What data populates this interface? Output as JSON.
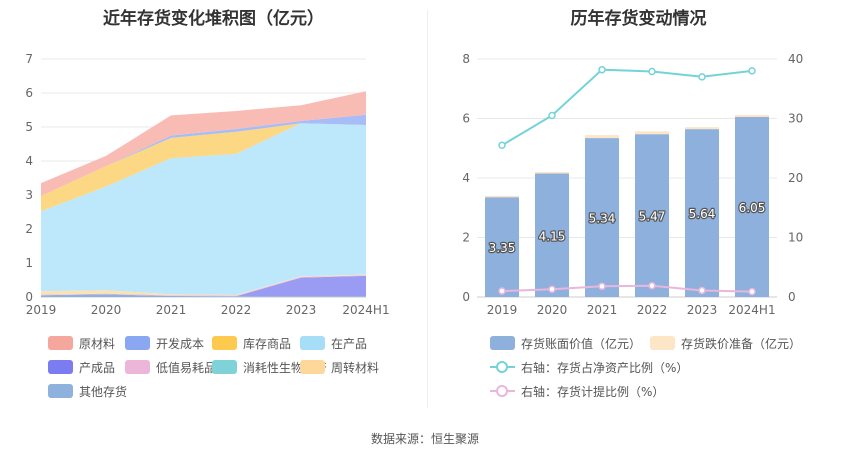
{
  "left_title": "近年存货变化堆积图（亿元）",
  "right_title": "历年存货变动情况",
  "footer": "数据来源：恒生聚源",
  "chart_data": [
    {
      "type": "area",
      "stacked": true,
      "title": "近年存货变化堆积图（亿元）",
      "categories": [
        "2019",
        "2020",
        "2021",
        "2022",
        "2023",
        "2024H1"
      ],
      "ylim": [
        0,
        7
      ],
      "yticks": [
        "0",
        "1",
        "2",
        "3",
        "4",
        "5",
        "6",
        "7"
      ],
      "grid": true,
      "legend_position": "bottom",
      "series": [
        {
          "name": "其他存货",
          "color": "#8eb1dd",
          "values": [
            0.05,
            0.08,
            0.03,
            0.02,
            0.02,
            0.02
          ]
        },
        {
          "name": "产成品",
          "color": "#9a9bf2",
          "values": [
            0.0,
            0.0,
            0.0,
            0.0,
            0.55,
            0.6
          ]
        },
        {
          "name": "低值易耗品",
          "color": "#eebbdd",
          "values": [
            0.02,
            0.02,
            0.02,
            0.02,
            0.02,
            0.02
          ]
        },
        {
          "name": "周转材料",
          "color": "#fde2b1",
          "values": [
            0.1,
            0.1,
            0.03,
            0.02,
            0.02,
            0.02
          ]
        },
        {
          "name": "在产品",
          "color": "#bde8fb",
          "values": [
            2.35,
            3.05,
            4.0,
            4.15,
            4.5,
            4.4
          ]
        },
        {
          "name": "消耗性生物资产",
          "color": "#8dd6d6",
          "values": [
            0.0,
            0.0,
            0.0,
            0.0,
            0.0,
            0.0
          ]
        },
        {
          "name": "库存商品",
          "color": "#fcd784",
          "values": [
            0.45,
            0.6,
            0.6,
            0.65,
            0.0,
            0.0
          ]
        },
        {
          "name": "开发成本",
          "color": "#a8bdf6",
          "values": [
            0.0,
            0.0,
            0.07,
            0.08,
            0.07,
            0.3
          ]
        },
        {
          "name": "原材料",
          "color": "#f9bcb5",
          "values": [
            0.38,
            0.3,
            0.59,
            0.53,
            0.46,
            0.69
          ]
        }
      ],
      "legend": [
        {
          "name": "原材料",
          "color": "#f6a79d"
        },
        {
          "name": "开发成本",
          "color": "#8aa7f2"
        },
        {
          "name": "库存商品",
          "color": "#fdc94f"
        },
        {
          "name": "在产品",
          "color": "#a6ddf7"
        },
        {
          "name": "产成品",
          "color": "#7b7cef"
        },
        {
          "name": "低值易耗品",
          "color": "#ecb6d9"
        },
        {
          "name": "消耗性生物资产",
          "color": "#7fd3d8"
        },
        {
          "name": "周转材料",
          "color": "#fdd89a"
        },
        {
          "name": "其他存货",
          "color": "#8eb1dd"
        }
      ]
    },
    {
      "type": "bar",
      "stacked": true,
      "title": "历年存货变动情况",
      "categories": [
        "2019",
        "2020",
        "2021",
        "2022",
        "2023",
        "2024H1"
      ],
      "ylim": [
        0,
        8
      ],
      "yticks": [
        "0",
        "2",
        "4",
        "6",
        "8"
      ],
      "y2lim": [
        0,
        40
      ],
      "y2ticks": [
        "0",
        "10",
        "20",
        "30",
        "40"
      ],
      "grid": true,
      "legend_position": "bottom",
      "bars": [
        {
          "name": "存货账面价值（亿元）",
          "color": "#8eb0dc",
          "values": [
            3.35,
            4.15,
            5.34,
            5.47,
            5.64,
            6.05
          ],
          "labels": [
            "3.35",
            "4.15",
            "5.34",
            "5.47",
            "5.64",
            "6.05"
          ]
        },
        {
          "name": "存货跌价准备（亿元）",
          "color": "#fde6c5",
          "values": [
            0.05,
            0.05,
            0.1,
            0.1,
            0.07,
            0.07
          ]
        }
      ],
      "lines": [
        {
          "name": "右轴：存货占净资产比例（%）",
          "color": "#74d3d8",
          "axis": "right",
          "values": [
            25.5,
            30.5,
            38.2,
            37.9,
            37.0,
            38.0
          ]
        },
        {
          "name": "右轴：存货计提比例（%）",
          "color": "#e9b6dc",
          "axis": "right",
          "values": [
            1.0,
            1.3,
            1.8,
            1.9,
            1.1,
            0.9
          ]
        }
      ]
    }
  ]
}
